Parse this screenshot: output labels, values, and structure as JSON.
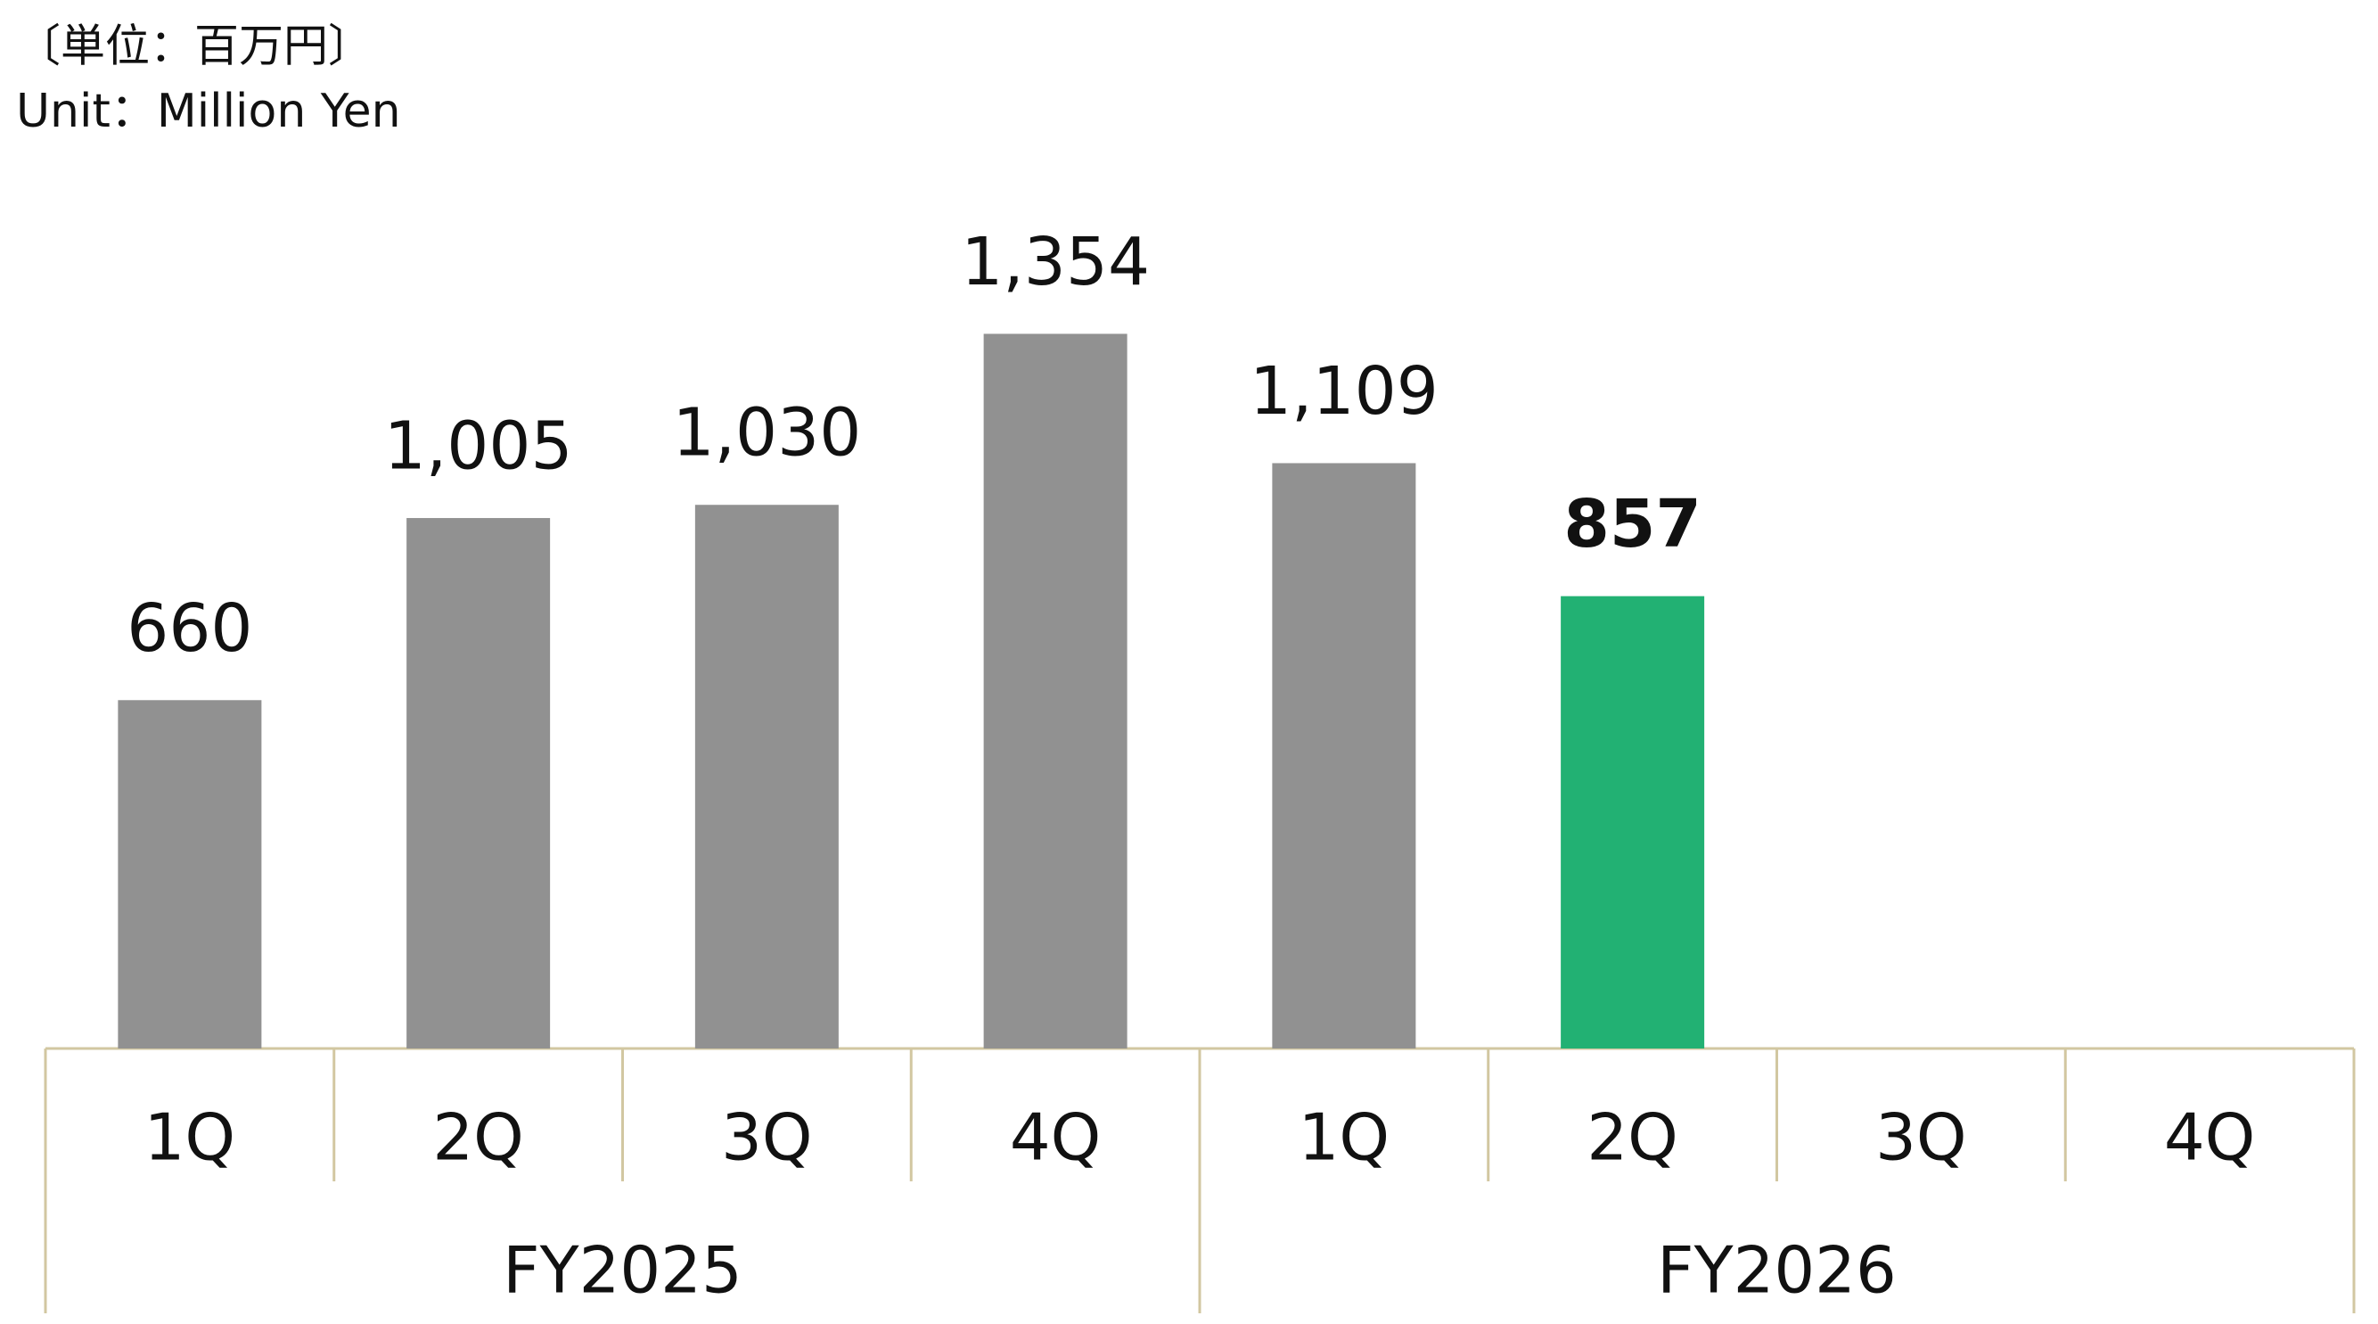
{
  "chart_data": {
    "type": "bar",
    "units": [
      "〔単位：百万円〕",
      "Unit：Million Yen"
    ],
    "categories": [
      "1Q",
      "2Q",
      "3Q",
      "4Q",
      "1Q",
      "2Q",
      "3Q",
      "4Q"
    ],
    "group_labels": [
      "FY2025",
      "FY2026"
    ],
    "values": [
      660,
      1005,
      1030,
      1354,
      1109,
      857,
      null,
      null
    ],
    "value_labels": [
      "660",
      "1,005",
      "1,030",
      "1,354",
      "1,109",
      "857",
      null,
      null
    ],
    "colors": [
      "#919191",
      "#919191",
      "#919191",
      "#919191",
      "#919191",
      "#22b173",
      "#919191",
      "#919191"
    ],
    "bold_labels": [
      false,
      false,
      false,
      false,
      false,
      true,
      false,
      false
    ],
    "ylim": [
      0,
      1500
    ],
    "grid": false
  }
}
